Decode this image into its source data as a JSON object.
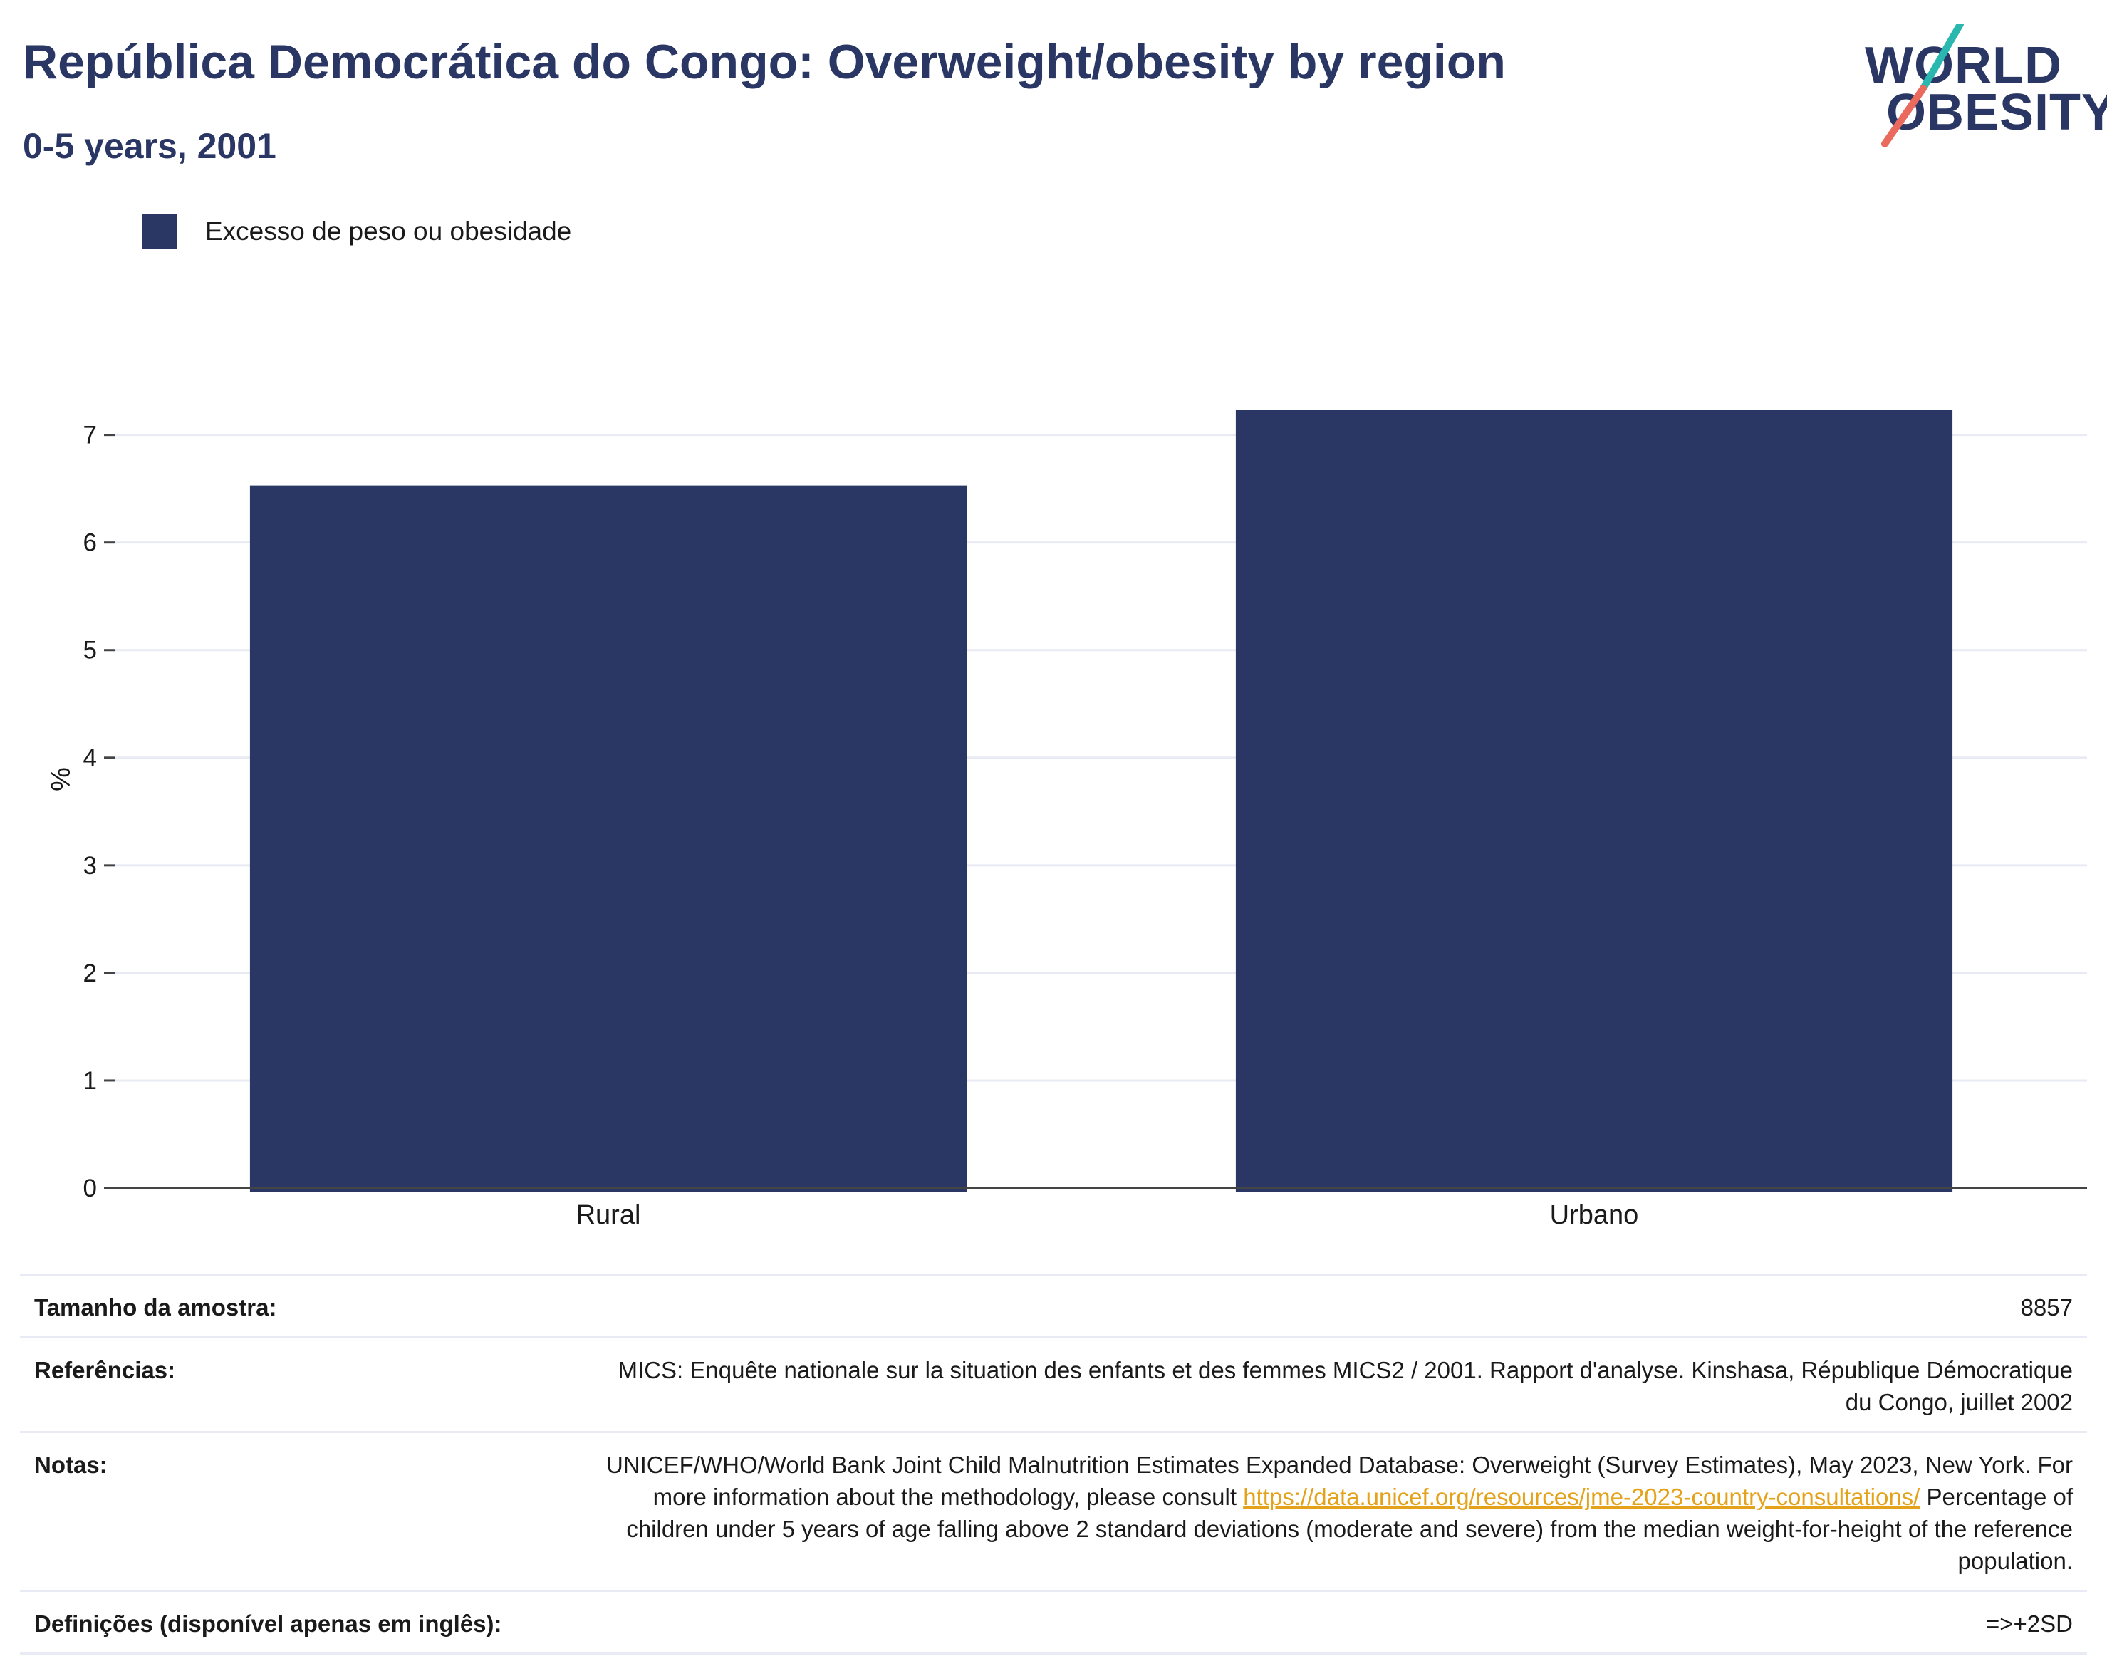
{
  "header": {
    "title": "República Democrática do Congo: Overweight/obesity by region",
    "subtitle": "0-5 years, 2001"
  },
  "logo": {
    "line1": "WORLD",
    "line2": "OBESITY",
    "colors": {
      "text": "#2a3663",
      "slash_top": "#2ab7b0",
      "slash_bottom": "#ea6a5e"
    }
  },
  "legend": {
    "label": "Excesso de peso ou obesidade",
    "color": "#2a3663"
  },
  "chart_data": {
    "type": "bar",
    "categories": [
      "Rural",
      "Urbano"
    ],
    "series": [
      {
        "name": "Excesso de peso ou obesidade",
        "values": [
          6.53,
          7.23
        ],
        "color": "#2a3663"
      }
    ],
    "ylabel": "%",
    "xlabel": "",
    "ylim": [
      0,
      7.6
    ],
    "yticks": [
      0,
      1,
      2,
      3,
      4,
      5,
      6,
      7
    ],
    "grid": true,
    "legend_position": "top-left"
  },
  "meta": {
    "sample_label": "Tamanho da amostra:",
    "sample_value": "8857",
    "refs_label": "Referências:",
    "refs_value": "MICS: Enquête nationale sur la situation des enfants et des femmes MICS2 / 2001. Rapport d'analyse. Kinshasa, République Démocratique du Congo, juillet 2002",
    "notes_label": "Notas:",
    "notes_text1": "UNICEF/WHO/World Bank Joint Child Malnutrition Estimates Expanded Database: Overweight (Survey Estimates), May 2023, New York. For more information about the methodology, please consult",
    "notes_link": "https://data.unicef.org/resources/jme-2023-country-consultations/",
    "notes_text2": "Percentage of children under 5 years of age falling above 2 standard deviations (moderate and severe) from the median weight-for-height of the reference population.",
    "defs_label": "Definições (disponível apenas em inglês):",
    "defs_value": "=>+2SD"
  }
}
